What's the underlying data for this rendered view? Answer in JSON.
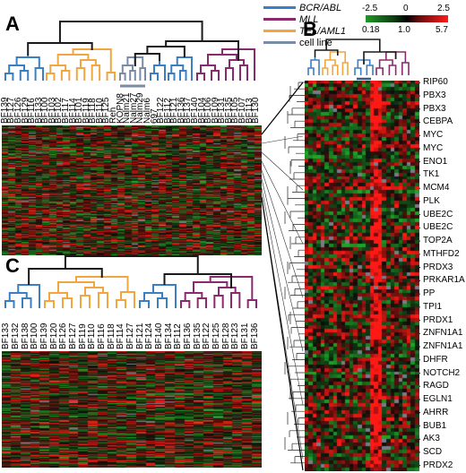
{
  "panels": {
    "a": "A",
    "b": "B",
    "c": "C"
  },
  "legend": [
    {
      "label": "BCR/ABL",
      "color": "#3a7fc4",
      "italic": true
    },
    {
      "label": "MLL",
      "color": "#8a2a6e",
      "italic": true
    },
    {
      "label": "TEL/AML1",
      "color": "#f2a640",
      "italic": true
    },
    {
      "label": "cell line",
      "color": "#7a8ba8",
      "italic": false
    }
  ],
  "colorbar": {
    "top_labels": [
      "-2.5",
      "0",
      "2.5"
    ],
    "bottom_labels": [
      "0.18",
      "1.0",
      "5.7"
    ]
  },
  "panel_a_samples": [
    "BF139",
    "BF127",
    "BF126",
    "BF129",
    "BF116",
    "BF133",
    "BF100",
    "BF103",
    "BF102",
    "BF117",
    "BF114",
    "BF101",
    "BF119",
    "BF118",
    "BF110",
    "BF125",
    "Reh",
    "KOPN8",
    "Nalm21",
    "Nalm27",
    "Nalm29",
    "Nalm6",
    "697",
    "BF122",
    "BF112",
    "BF121",
    "BF136",
    "BF137",
    "BF140",
    "BF104",
    "BF106",
    "BF109",
    "BF131",
    "BF135",
    "BF105",
    "BF107",
    "BF113",
    "BF130"
  ],
  "panel_c_samples": [
    "BF133",
    "BF132",
    "BF138",
    "BF100",
    "BF139",
    "BF120",
    "BF126",
    "BF127",
    "BF119",
    "BF110",
    "BF116",
    "BF118",
    "BF114",
    "BF127",
    "BF121",
    "BF124",
    "BF140",
    "BF134",
    "BF112",
    "BF136",
    "BF135",
    "BF122",
    "BF125",
    "BF128",
    "BF123",
    "BF131",
    "BF136"
  ],
  "panel_b_genes": [
    "RIP60",
    "PBX3",
    "PBX3",
    "CEBPA",
    "MYC",
    "MYC",
    "ENO1",
    "TK1",
    "MCM4",
    "PLK",
    "UBE2C",
    "UBE2C",
    "TOP2A",
    "MTHFD2",
    "PRDX3",
    "PRKAR1A",
    "PP",
    "TPI1",
    "PRDX1",
    "ZNFN1A1",
    "ZNFN1A1",
    "DHFR",
    "NOTCH2",
    "RAGD",
    "EGLN1",
    "AHRR",
    "BUB1",
    "AK3",
    "SCD",
    "PRDX2"
  ]
}
